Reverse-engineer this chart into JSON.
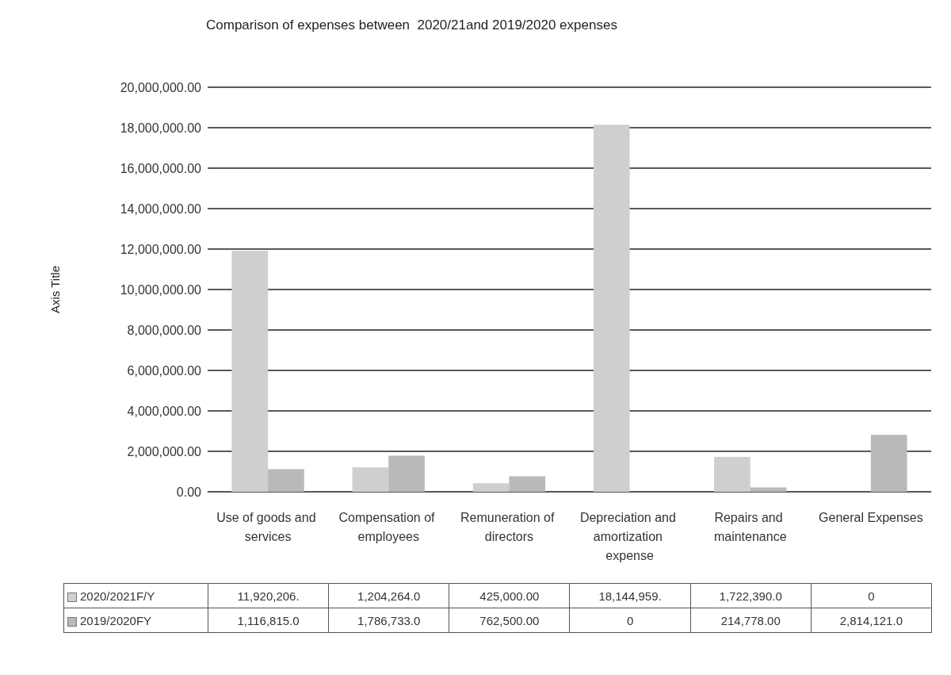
{
  "chart_data": {
    "type": "bar",
    "title": "Comparison of expenses between  2020/21and 2019/2020 expenses",
    "ylabel": "Axis Title",
    "categories": [
      "Use of goods and services",
      "Compensation of employees",
      "Remuneration of directors",
      "Depreciation and amortization expense",
      "Repairs and maintenance",
      "General Expenses"
    ],
    "series": [
      {
        "name": "2020/2021F/Y",
        "color": "#cfcfcf",
        "values": [
          11920206,
          1204264,
          425000,
          18144959,
          1722390,
          0
        ],
        "value_labels": [
          "11,920,206.",
          "1,204,264.0",
          "425,000.00",
          "18,144,959.",
          "1,722,390.0",
          "0"
        ]
      },
      {
        "name": "2019/2020FY",
        "color": "#b9b9b9",
        "values": [
          1116815,
          1786733,
          762500,
          0,
          214778,
          2814121
        ],
        "value_labels": [
          "1,116,815.0",
          "1,786,733.0",
          "762,500.00",
          "0",
          "214,778.00",
          "2,814,121.0"
        ]
      }
    ],
    "ylim": [
      0,
      20000000
    ],
    "yticks": [
      {
        "value": 0,
        "label": "0.00"
      },
      {
        "value": 2000000,
        "label": "2,000,000.00"
      },
      {
        "value": 4000000,
        "label": "4,000,000.00"
      },
      {
        "value": 6000000,
        "label": "6,000,000.00"
      },
      {
        "value": 8000000,
        "label": "8,000,000.00"
      },
      {
        "value": 10000000,
        "label": "10,000,000.00"
      },
      {
        "value": 12000000,
        "label": "12,000,000.00"
      },
      {
        "value": 14000000,
        "label": "14,000,000.00"
      },
      {
        "value": 16000000,
        "label": "16,000,000.00"
      },
      {
        "value": 18000000,
        "label": "18,000,000.00"
      },
      {
        "value": 20000000,
        "label": "20,000,000.00"
      }
    ],
    "grid": "y",
    "legend": "bottom left"
  }
}
